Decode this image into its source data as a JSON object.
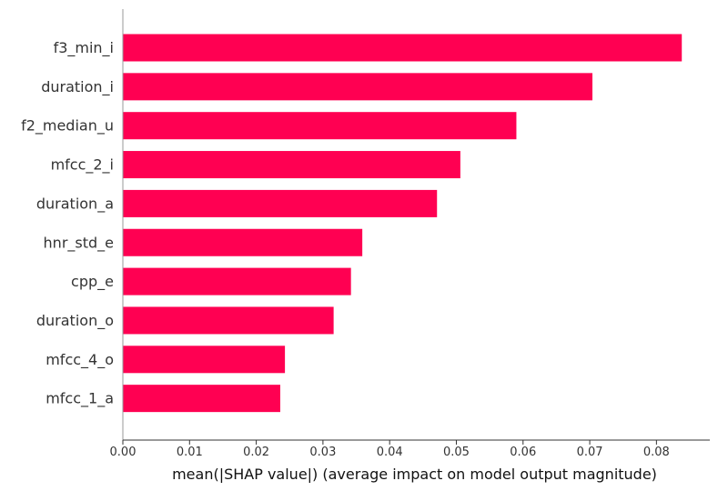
{
  "chart_data": {
    "type": "bar",
    "orientation": "horizontal",
    "categories": [
      "f3_min_i",
      "duration_i",
      "f2_median_u",
      "mfcc_2_i",
      "duration_a",
      "hnr_std_e",
      "cpp_e",
      "duration_o",
      "mfcc_4_o",
      "mfcc_1_a"
    ],
    "values": [
      0.0838,
      0.0704,
      0.059,
      0.0506,
      0.0471,
      0.0359,
      0.0342,
      0.0316,
      0.0243,
      0.0236
    ],
    "xlabel": "mean(|SHAP value|) (average impact on model output magnitude)",
    "ylabel": "",
    "title": "",
    "xlim": [
      0,
      0.088
    ],
    "xticks": [
      {
        "value": 0.0,
        "label": "0.00"
      },
      {
        "value": 0.01,
        "label": "0.01"
      },
      {
        "value": 0.02,
        "label": "0.02"
      },
      {
        "value": 0.03,
        "label": "0.03"
      },
      {
        "value": 0.04,
        "label": "0.04"
      },
      {
        "value": 0.05,
        "label": "0.05"
      },
      {
        "value": 0.06,
        "label": "0.06"
      },
      {
        "value": 0.07,
        "label": "0.07"
      },
      {
        "value": 0.08,
        "label": "0.08"
      }
    ],
    "grid": false,
    "legend": "none",
    "colors": {
      "bar": "#ff0052",
      "axis": "#333333",
      "label": "#333333",
      "tick_text": "#333333",
      "left_spine": "#999999"
    }
  }
}
